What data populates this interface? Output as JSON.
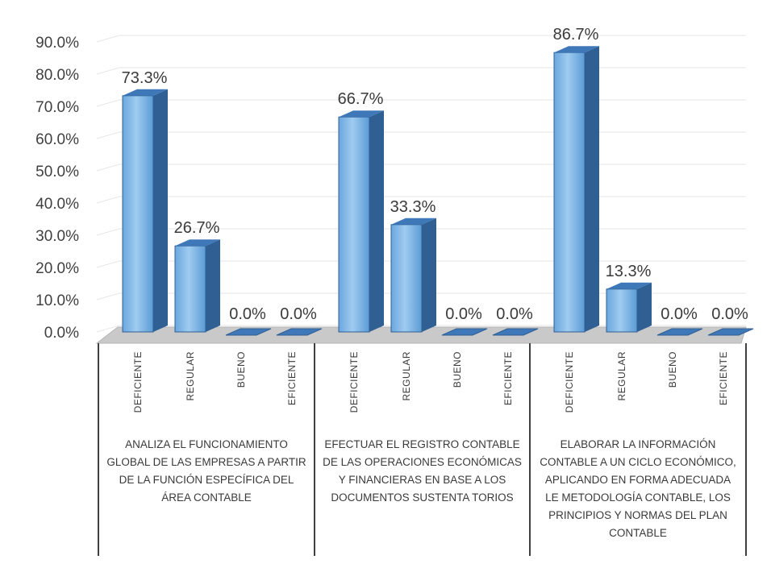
{
  "chart_data": {
    "type": "bar",
    "title": "",
    "xlabel": "",
    "ylabel": "",
    "ylim": [
      0,
      90
    ],
    "ytick_step": 10,
    "ytick_labels": [
      "0.0%",
      "10.0%",
      "20.0%",
      "30.0%",
      "40.0%",
      "50.0%",
      "60.0%",
      "70.0%",
      "80.0%",
      "90.0%"
    ],
    "grid": true,
    "legend": "none",
    "groups": [
      {
        "label_lines": [
          "ANALIZA EL FUNCIONAMIENTO",
          "GLOBAL DE LAS EMPRESAS A PARTIR",
          "DE LA FUNCIÓN ESPECÍFICA DEL",
          "ÁREA CONTABLE"
        ],
        "categories": [
          "DEFICIENTE",
          "REGULAR",
          "BUENO",
          "EFICIENTE"
        ],
        "values": [
          73.3,
          26.7,
          0.0,
          0.0
        ],
        "value_labels": [
          "73.3%",
          "26.7%",
          "0.0%",
          "0.0%"
        ]
      },
      {
        "label_lines": [
          "EFECTUAR EL REGISTRO CONTABLE",
          "DE LAS OPERACIONES ECONÓMICAS",
          "Y FINANCIERAS EN BASE A LOS",
          "DOCUMENTOS SUSTENTA TORIOS"
        ],
        "categories": [
          "DEFICIENTE",
          "REGULAR",
          "BUENO",
          "EFICIENTE"
        ],
        "values": [
          66.7,
          33.3,
          0.0,
          0.0
        ],
        "value_labels": [
          "66.7%",
          "33.3%",
          "0.0%",
          "0.0%"
        ]
      },
      {
        "label_lines": [
          "ELABORAR LA INFORMACIÓN",
          "CONTABLE A UN CICLO ECONÓMICO,",
          "APLICANDO EN FORMA ADECUADA",
          "LE METODOLOGÍA CONTABLE, LOS",
          "PRINCIPIOS Y NORMAS DEL PLAN",
          "CONTABLE"
        ],
        "categories": [
          "DEFICIENTE",
          "REGULAR",
          "BUENO",
          "EFICIENTE"
        ],
        "values": [
          86.7,
          13.3,
          0.0,
          0.0
        ],
        "value_labels": [
          "86.7%",
          "13.3%",
          "0.0%",
          "0.0%"
        ]
      }
    ]
  },
  "colors": {
    "bar_front": "#5b9bd5",
    "bar_front_light": "#8fc0ec",
    "bar_side": "#2f5f93",
    "bar_top": "#3f78b8",
    "floor": "#c9c9c9",
    "grid": "#e6e6e6",
    "axis_text": "#404040",
    "label_text": "#3a3a3a",
    "divider": "#404040"
  }
}
